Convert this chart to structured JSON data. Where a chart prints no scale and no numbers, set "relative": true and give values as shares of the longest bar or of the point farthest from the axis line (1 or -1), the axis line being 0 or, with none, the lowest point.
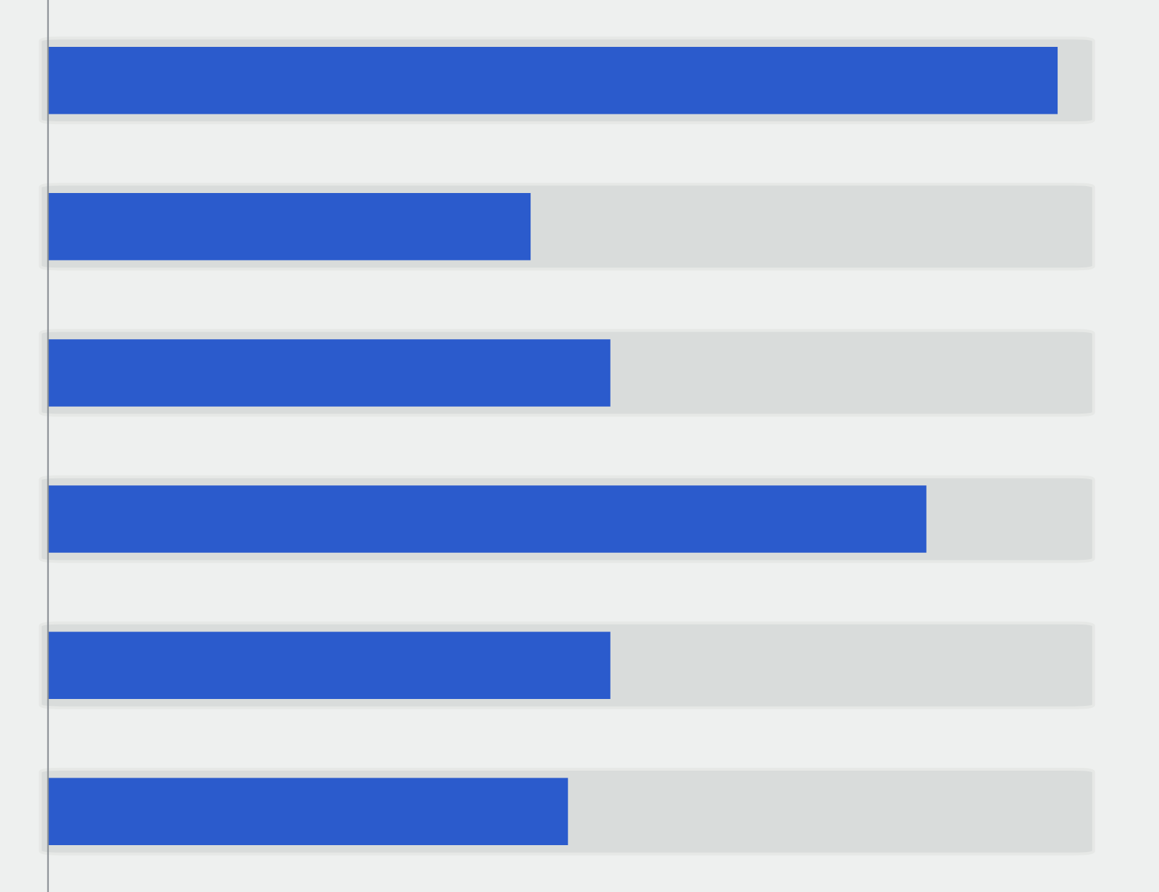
{
  "chart_data": {
    "type": "bar",
    "orientation": "horizontal",
    "relative": true,
    "categories": [
      null,
      null,
      null,
      null,
      null,
      null
    ],
    "values": [
      1,
      0.478,
      0.557,
      0.87,
      0.557,
      0.515
    ],
    "color": "#2b5bcc"
  }
}
